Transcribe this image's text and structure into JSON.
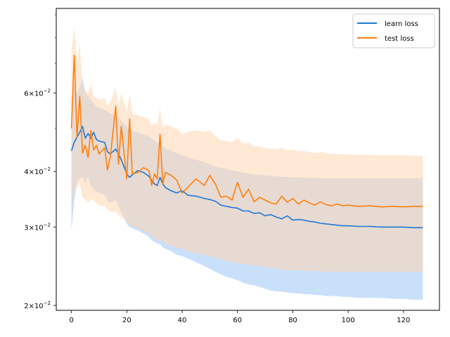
{
  "chart_data": {
    "type": "line",
    "title": "",
    "xlabel": "",
    "ylabel": "",
    "xlim": [
      -5.5,
      133
    ],
    "ylim": [
      0.0195,
      0.093
    ],
    "yscale": "log",
    "grid": false,
    "legend_position": "top-right",
    "x_ticks": [
      0,
      20,
      40,
      60,
      80,
      100,
      120
    ],
    "x_tick_labels": [
      "0",
      "20",
      "40",
      "60",
      "80",
      "100",
      "120"
    ],
    "y_major_ticks": [
      0.02,
      0.03,
      0.04,
      0.06
    ],
    "y_minor_ticks": [
      0.05,
      0.07,
      0.08,
      0.09
    ],
    "y_tick_labels": [
      {
        "value": 0.02,
        "mantissa": "2",
        "base": "10",
        "exp": "−2"
      },
      {
        "value": 0.03,
        "mantissa": "3",
        "base": "10",
        "exp": "−2"
      },
      {
        "value": 0.04,
        "mantissa": "4",
        "base": "10",
        "exp": "−2"
      },
      {
        "value": 0.06,
        "mantissa": "6",
        "base": "10",
        "exp": "−2"
      }
    ],
    "x_anchors": [
      0,
      1,
      2,
      3,
      4,
      5,
      6,
      7,
      8,
      9,
      10,
      12,
      13,
      14,
      16,
      17,
      18,
      20,
      21,
      22,
      24,
      26,
      28,
      29,
      30,
      31,
      32,
      33,
      34,
      36,
      38,
      40,
      42,
      45,
      48,
      50,
      52,
      54,
      56,
      58,
      60,
      62,
      64,
      66,
      68,
      70,
      72,
      74,
      76,
      78,
      80,
      82,
      84,
      86,
      88,
      90,
      92,
      94,
      96,
      98,
      100,
      104,
      108,
      112,
      116,
      120,
      124,
      127
    ],
    "series": [
      {
        "name": "learn loss",
        "color": "#1f77d4",
        "fill_color": "#c9e0fb",
        "values": [
          0.0445,
          0.0465,
          0.0478,
          0.049,
          0.0505,
          0.0475,
          0.0487,
          0.0475,
          0.049,
          0.0472,
          0.0468,
          0.0465,
          0.0443,
          0.0438,
          0.0449,
          0.0438,
          0.0425,
          0.0395,
          0.0388,
          0.0393,
          0.0402,
          0.0398,
          0.039,
          0.0382,
          0.0375,
          0.0372,
          0.0388,
          0.0375,
          0.0368,
          0.0362,
          0.0358,
          0.0362,
          0.0354,
          0.0352,
          0.0348,
          0.0346,
          0.0343,
          0.0336,
          0.0334,
          0.0332,
          0.0331,
          0.0326,
          0.0326,
          0.0322,
          0.0323,
          0.0318,
          0.032,
          0.0316,
          0.0313,
          0.0318,
          0.0311,
          0.0312,
          0.0311,
          0.0309,
          0.0308,
          0.0306,
          0.0305,
          0.0304,
          0.0303,
          0.0302,
          0.0302,
          0.0301,
          0.0301,
          0.03,
          0.03,
          0.03,
          0.0299,
          0.0299
        ],
        "band_low": [
          0.0295,
          0.0345,
          0.038,
          0.0385,
          0.039,
          0.0375,
          0.039,
          0.037,
          0.0365,
          0.036,
          0.0358,
          0.0355,
          0.0345,
          0.034,
          0.0345,
          0.0335,
          0.0325,
          0.0305,
          0.03,
          0.0298,
          0.0295,
          0.029,
          0.0285,
          0.028,
          0.0278,
          0.0275,
          0.0275,
          0.027,
          0.0268,
          0.0265,
          0.026,
          0.0258,
          0.0255,
          0.025,
          0.0245,
          0.0242,
          0.0238,
          0.0235,
          0.0232,
          0.023,
          0.0228,
          0.0225,
          0.0223,
          0.0222,
          0.022,
          0.0218,
          0.0216,
          0.0215,
          0.0215,
          0.0214,
          0.0213,
          0.0213,
          0.0212,
          0.0212,
          0.0211,
          0.0211,
          0.021,
          0.021,
          0.021,
          0.0209,
          0.0209,
          0.0208,
          0.0208,
          0.0208,
          0.0207,
          0.0207,
          0.0206,
          0.0206
        ],
        "band_high": [
          0.058,
          0.063,
          0.06,
          0.062,
          0.065,
          0.06,
          0.059,
          0.058,
          0.057,
          0.056,
          0.0555,
          0.055,
          0.0545,
          0.054,
          0.0535,
          0.053,
          0.052,
          0.0505,
          0.05,
          0.0495,
          0.049,
          0.0485,
          0.048,
          0.0475,
          0.047,
          0.0465,
          0.046,
          0.0455,
          0.045,
          0.0445,
          0.044,
          0.0435,
          0.043,
          0.0425,
          0.042,
          0.0415,
          0.041,
          0.0408,
          0.0405,
          0.0402,
          0.04,
          0.0398,
          0.0396,
          0.0394,
          0.0393,
          0.0392,
          0.0391,
          0.039,
          0.0389,
          0.0389,
          0.0388,
          0.0388,
          0.0387,
          0.0387,
          0.0387,
          0.0386,
          0.0386,
          0.0386,
          0.0386,
          0.0386,
          0.0386,
          0.0386,
          0.0386,
          0.0386,
          0.0386,
          0.0386,
          0.0386,
          0.0386
        ]
      },
      {
        "name": "test loss",
        "color": "#ff7f0e",
        "fill_color": "#ffd6b0",
        "values": [
          0.05,
          0.073,
          0.0478,
          0.059,
          0.044,
          0.0458,
          0.043,
          0.0495,
          0.0447,
          0.0458,
          0.0438,
          0.0452,
          0.0403,
          0.0429,
          0.056,
          0.0415,
          0.0505,
          0.0385,
          0.0525,
          0.0395,
          0.0398,
          0.0408,
          0.0402,
          0.0372,
          0.0395,
          0.0385,
          0.0485,
          0.0375,
          0.0398,
          0.0392,
          0.0383,
          0.0358,
          0.0368,
          0.0385,
          0.0372,
          0.0392,
          0.0375,
          0.035,
          0.0352,
          0.0345,
          0.0378,
          0.035,
          0.0365,
          0.0342,
          0.035,
          0.0345,
          0.034,
          0.0338,
          0.0352,
          0.0341,
          0.0348,
          0.0338,
          0.0345,
          0.034,
          0.0336,
          0.0342,
          0.0337,
          0.0335,
          0.0338,
          0.0335,
          0.0336,
          0.0334,
          0.0335,
          0.0333,
          0.0334,
          0.0333,
          0.0334,
          0.0334
        ],
        "band_low": [
          0.034,
          0.036,
          0.037,
          0.0375,
          0.035,
          0.0345,
          0.034,
          0.0345,
          0.0345,
          0.034,
          0.0335,
          0.0335,
          0.033,
          0.0325,
          0.0325,
          0.032,
          0.0315,
          0.031,
          0.0305,
          0.03,
          0.0298,
          0.0295,
          0.029,
          0.0285,
          0.0283,
          0.028,
          0.028,
          0.0278,
          0.0275,
          0.0272,
          0.027,
          0.0268,
          0.0265,
          0.0262,
          0.026,
          0.0258,
          0.0256,
          0.0254,
          0.0252,
          0.025,
          0.0249,
          0.0248,
          0.0247,
          0.0246,
          0.0245,
          0.0244,
          0.0243,
          0.0242,
          0.0241,
          0.024,
          0.024,
          0.024,
          0.0239,
          0.0239,
          0.0239,
          0.0238,
          0.0238,
          0.0238,
          0.0238,
          0.0238,
          0.0238,
          0.0238,
          0.0238,
          0.0238,
          0.0238,
          0.0238,
          0.0238,
          0.0238
        ],
        "band_high": [
          0.073,
          0.085,
          0.07,
          0.078,
          0.062,
          0.061,
          0.06,
          0.063,
          0.059,
          0.0585,
          0.058,
          0.0585,
          0.0565,
          0.057,
          0.062,
          0.056,
          0.06,
          0.0545,
          0.0595,
          0.054,
          0.0535,
          0.053,
          0.0525,
          0.0505,
          0.0515,
          0.051,
          0.0555,
          0.05,
          0.051,
          0.0505,
          0.05,
          0.0485,
          0.049,
          0.0495,
          0.049,
          0.0495,
          0.048,
          0.047,
          0.0468,
          0.0465,
          0.0475,
          0.0462,
          0.0465,
          0.0455,
          0.0455,
          0.0452,
          0.045,
          0.0448,
          0.0452,
          0.0446,
          0.0448,
          0.0444,
          0.0445,
          0.0442,
          0.044,
          0.0442,
          0.044,
          0.0438,
          0.0438,
          0.0437,
          0.0437,
          0.0436,
          0.0436,
          0.0435,
          0.0435,
          0.0435,
          0.0434,
          0.0434
        ]
      }
    ],
    "legend": [
      {
        "label": "learn loss",
        "color": "#1f77d4"
      },
      {
        "label": "test loss",
        "color": "#ff7f0e"
      }
    ]
  }
}
